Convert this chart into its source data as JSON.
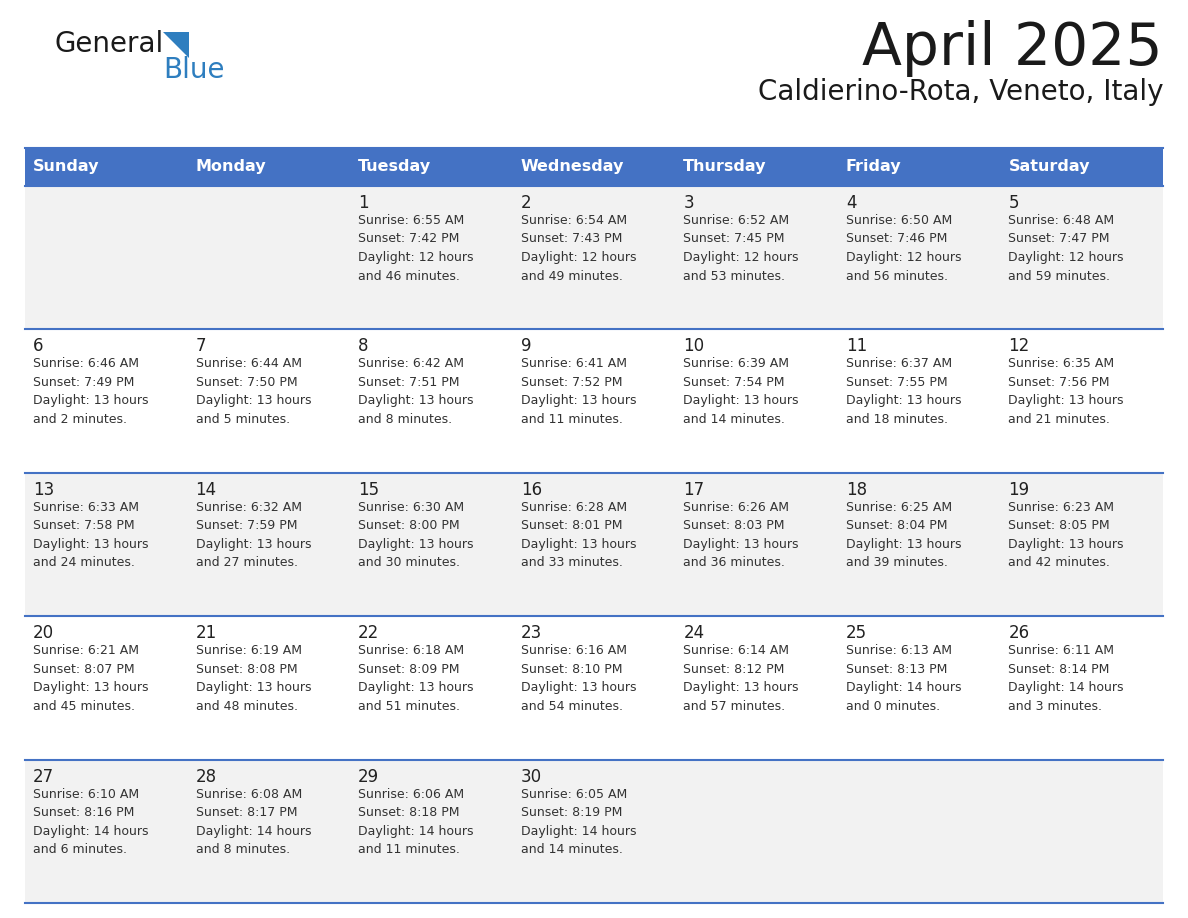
{
  "title": "April 2025",
  "subtitle": "Caldierino-Rota, Veneto, Italy",
  "header_color": "#4472C4",
  "header_text_color": "#FFFFFF",
  "header_days": [
    "Sunday",
    "Monday",
    "Tuesday",
    "Wednesday",
    "Thursday",
    "Friday",
    "Saturday"
  ],
  "bg_color": "#FFFFFF",
  "row_colors": [
    "#F2F2F2",
    "#FFFFFF",
    "#F2F2F2",
    "#FFFFFF",
    "#F2F2F2"
  ],
  "cell_text_color": "#333333",
  "border_color": "#4472C4",
  "day_number_color": "#222222",
  "logo_black_text": "#1a1a1a",
  "logo_blue_text": "#2e7ebf",
  "logo_triangle_color": "#2e7ebf",
  "weeks": [
    [
      {
        "day": null,
        "info": null
      },
      {
        "day": null,
        "info": null
      },
      {
        "day": 1,
        "info": "Sunrise: 6:55 AM\nSunset: 7:42 PM\nDaylight: 12 hours\nand 46 minutes."
      },
      {
        "day": 2,
        "info": "Sunrise: 6:54 AM\nSunset: 7:43 PM\nDaylight: 12 hours\nand 49 minutes."
      },
      {
        "day": 3,
        "info": "Sunrise: 6:52 AM\nSunset: 7:45 PM\nDaylight: 12 hours\nand 53 minutes."
      },
      {
        "day": 4,
        "info": "Sunrise: 6:50 AM\nSunset: 7:46 PM\nDaylight: 12 hours\nand 56 minutes."
      },
      {
        "day": 5,
        "info": "Sunrise: 6:48 AM\nSunset: 7:47 PM\nDaylight: 12 hours\nand 59 minutes."
      }
    ],
    [
      {
        "day": 6,
        "info": "Sunrise: 6:46 AM\nSunset: 7:49 PM\nDaylight: 13 hours\nand 2 minutes."
      },
      {
        "day": 7,
        "info": "Sunrise: 6:44 AM\nSunset: 7:50 PM\nDaylight: 13 hours\nand 5 minutes."
      },
      {
        "day": 8,
        "info": "Sunrise: 6:42 AM\nSunset: 7:51 PM\nDaylight: 13 hours\nand 8 minutes."
      },
      {
        "day": 9,
        "info": "Sunrise: 6:41 AM\nSunset: 7:52 PM\nDaylight: 13 hours\nand 11 minutes."
      },
      {
        "day": 10,
        "info": "Sunrise: 6:39 AM\nSunset: 7:54 PM\nDaylight: 13 hours\nand 14 minutes."
      },
      {
        "day": 11,
        "info": "Sunrise: 6:37 AM\nSunset: 7:55 PM\nDaylight: 13 hours\nand 18 minutes."
      },
      {
        "day": 12,
        "info": "Sunrise: 6:35 AM\nSunset: 7:56 PM\nDaylight: 13 hours\nand 21 minutes."
      }
    ],
    [
      {
        "day": 13,
        "info": "Sunrise: 6:33 AM\nSunset: 7:58 PM\nDaylight: 13 hours\nand 24 minutes."
      },
      {
        "day": 14,
        "info": "Sunrise: 6:32 AM\nSunset: 7:59 PM\nDaylight: 13 hours\nand 27 minutes."
      },
      {
        "day": 15,
        "info": "Sunrise: 6:30 AM\nSunset: 8:00 PM\nDaylight: 13 hours\nand 30 minutes."
      },
      {
        "day": 16,
        "info": "Sunrise: 6:28 AM\nSunset: 8:01 PM\nDaylight: 13 hours\nand 33 minutes."
      },
      {
        "day": 17,
        "info": "Sunrise: 6:26 AM\nSunset: 8:03 PM\nDaylight: 13 hours\nand 36 minutes."
      },
      {
        "day": 18,
        "info": "Sunrise: 6:25 AM\nSunset: 8:04 PM\nDaylight: 13 hours\nand 39 minutes."
      },
      {
        "day": 19,
        "info": "Sunrise: 6:23 AM\nSunset: 8:05 PM\nDaylight: 13 hours\nand 42 minutes."
      }
    ],
    [
      {
        "day": 20,
        "info": "Sunrise: 6:21 AM\nSunset: 8:07 PM\nDaylight: 13 hours\nand 45 minutes."
      },
      {
        "day": 21,
        "info": "Sunrise: 6:19 AM\nSunset: 8:08 PM\nDaylight: 13 hours\nand 48 minutes."
      },
      {
        "day": 22,
        "info": "Sunrise: 6:18 AM\nSunset: 8:09 PM\nDaylight: 13 hours\nand 51 minutes."
      },
      {
        "day": 23,
        "info": "Sunrise: 6:16 AM\nSunset: 8:10 PM\nDaylight: 13 hours\nand 54 minutes."
      },
      {
        "day": 24,
        "info": "Sunrise: 6:14 AM\nSunset: 8:12 PM\nDaylight: 13 hours\nand 57 minutes."
      },
      {
        "day": 25,
        "info": "Sunrise: 6:13 AM\nSunset: 8:13 PM\nDaylight: 14 hours\nand 0 minutes."
      },
      {
        "day": 26,
        "info": "Sunrise: 6:11 AM\nSunset: 8:14 PM\nDaylight: 14 hours\nand 3 minutes."
      }
    ],
    [
      {
        "day": 27,
        "info": "Sunrise: 6:10 AM\nSunset: 8:16 PM\nDaylight: 14 hours\nand 6 minutes."
      },
      {
        "day": 28,
        "info": "Sunrise: 6:08 AM\nSunset: 8:17 PM\nDaylight: 14 hours\nand 8 minutes."
      },
      {
        "day": 29,
        "info": "Sunrise: 6:06 AM\nSunset: 8:18 PM\nDaylight: 14 hours\nand 11 minutes."
      },
      {
        "day": 30,
        "info": "Sunrise: 6:05 AM\nSunset: 8:19 PM\nDaylight: 14 hours\nand 14 minutes."
      },
      {
        "day": null,
        "info": null
      },
      {
        "day": null,
        "info": null
      },
      {
        "day": null,
        "info": null
      }
    ]
  ]
}
